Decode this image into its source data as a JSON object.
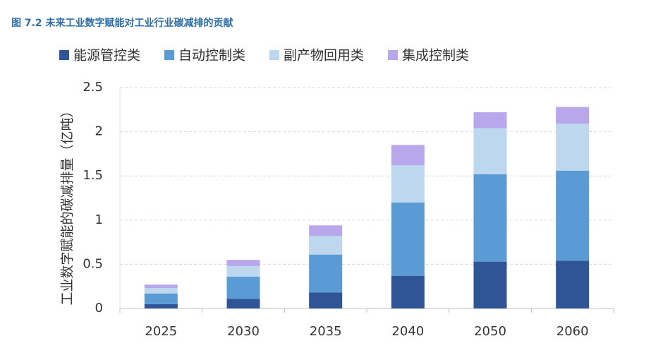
{
  "chart_data": {
    "type": "stacked-bar",
    "title": "图 7.2 未来工业数字赋能对工业行业碳减排的贡献",
    "y_label": "工业数字赋能的碳减排量（亿吨）",
    "categories": [
      "2025",
      "2030",
      "2035",
      "2040",
      "2050",
      "2060"
    ],
    "series": [
      {
        "name": "能源管控类",
        "color": "#2f5597",
        "values": [
          0.05,
          0.11,
          0.18,
          0.37,
          0.53,
          0.54
        ]
      },
      {
        "name": "自动控制类",
        "color": "#5b9bd5",
        "values": [
          0.12,
          0.25,
          0.43,
          0.83,
          0.99,
          1.02
        ]
      },
      {
        "name": "副产物回用类",
        "color": "#bdd7ee",
        "values": [
          0.06,
          0.12,
          0.21,
          0.42,
          0.52,
          0.53
        ]
      },
      {
        "name": "集成控制类",
        "color": "#b9a7ec",
        "values": [
          0.04,
          0.07,
          0.12,
          0.23,
          0.18,
          0.19
        ]
      }
    ],
    "ylim": [
      0,
      2.5
    ],
    "yticks": [
      0,
      0.5,
      1,
      1.5,
      2,
      2.5
    ],
    "grid": true,
    "legend": "top"
  }
}
